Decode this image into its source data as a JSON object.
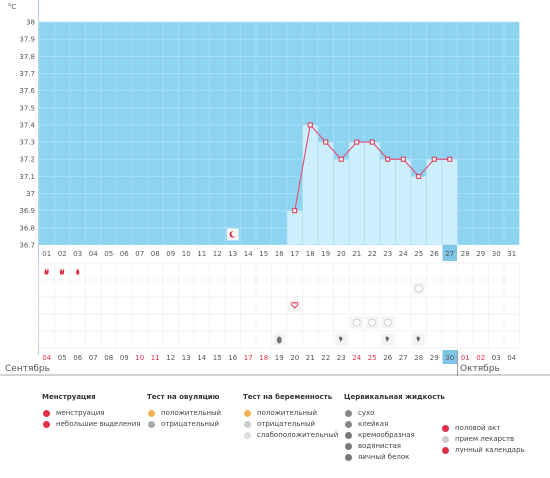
{
  "unit_label": "°C",
  "month_left": "Сентябрь",
  "month_right": "Октябрь",
  "chart_data": {
    "type": "line",
    "ylim": [
      36.7,
      38.0
    ],
    "y_ticks": [
      "38",
      "37.9",
      "37.8",
      "37.7",
      "37.6",
      "37.5",
      "37.4",
      "37.3",
      "37.2",
      "37.1",
      "37",
      "36.9",
      "36.8",
      "36.7"
    ],
    "x_top": [
      "01",
      "02",
      "03",
      "04",
      "05",
      "06",
      "07",
      "08",
      "09",
      "10",
      "11",
      "12",
      "13",
      "14",
      "15",
      "16",
      "17",
      "18",
      "19",
      "20",
      "21",
      "22",
      "23",
      "24",
      "25",
      "26",
      "27",
      "28",
      "29",
      "30",
      "31"
    ],
    "x_top_highlight_index": 26,
    "x_bottom": [
      "04",
      "05",
      "06",
      "07",
      "08",
      "09",
      "10",
      "11",
      "12",
      "13",
      "14",
      "15",
      "16",
      "17",
      "18",
      "19",
      "20",
      "21",
      "22",
      "23",
      "24",
      "25",
      "26",
      "27",
      "28",
      "29",
      "30",
      "01",
      "02",
      "03",
      "04"
    ],
    "x_bottom_red": [
      0,
      6,
      7,
      13,
      14,
      20,
      21,
      27,
      28
    ],
    "x_bottom_highlight_index": 26,
    "temps": [
      null,
      null,
      null,
      null,
      null,
      null,
      null,
      null,
      null,
      null,
      null,
      null,
      null,
      null,
      null,
      null,
      36.9,
      37.4,
      37.3,
      37.2,
      37.3,
      37.3,
      37.2,
      37.2,
      37.1,
      37.2,
      37.2,
      null,
      null,
      null,
      null
    ],
    "markers": [
      {
        "day": 1,
        "row": 0,
        "kind": "menstruation"
      },
      {
        "day": 2,
        "row": 0,
        "kind": "menstruation"
      },
      {
        "day": 3,
        "row": 0,
        "kind": "spotting"
      },
      {
        "day": 13,
        "row": -1,
        "kind": "lunar"
      },
      {
        "day": 17,
        "row": 2,
        "kind": "intercourse"
      },
      {
        "day": 25,
        "row": 1,
        "kind": "pill"
      },
      {
        "day": 21,
        "row": 3,
        "kind": "pill"
      },
      {
        "day": 22,
        "row": 3,
        "kind": "pill"
      },
      {
        "day": 23,
        "row": 3,
        "kind": "pill"
      },
      {
        "day": 16,
        "row": 4,
        "kind": "eggwhite"
      },
      {
        "day": 20,
        "row": 4,
        "kind": "watery"
      },
      {
        "day": 23,
        "row": 4,
        "kind": "watery"
      },
      {
        "day": 25,
        "row": 4,
        "kind": "watery"
      }
    ]
  },
  "legend": [
    {
      "title": "Менструация",
      "items": [
        {
          "label": "менструация",
          "icon": "menstruation-icon",
          "color": "#e0304a"
        },
        {
          "label": "небольшие выделения",
          "icon": "spotting-icon",
          "color": "#e0304a"
        }
      ]
    },
    {
      "title": "Тест на овуляцию",
      "items": [
        {
          "label": "положительный",
          "icon": "ovulation-positive-icon",
          "color": "#f0b35a"
        },
        {
          "label": "отрицательный",
          "icon": "ovulation-negative-icon",
          "color": "#aaaaaa"
        }
      ]
    },
    {
      "title": "Тест на беременность",
      "items": [
        {
          "label": "положительный",
          "icon": "pregnancy-positive-icon",
          "color": "#f0b35a"
        },
        {
          "label": "отрицательный",
          "icon": "pregnancy-negative-icon",
          "color": "#cccccc"
        },
        {
          "label": "слабоположительный",
          "icon": "pregnancy-weak-icon",
          "color": "#dddddd"
        }
      ]
    },
    {
      "title": "Цервикальная жидкость",
      "items": [
        {
          "label": "сухо",
          "icon": "dry-icon",
          "color": "#888888"
        },
        {
          "label": "клейкая",
          "icon": "sticky-icon",
          "color": "#888888"
        },
        {
          "label": "кремообразная",
          "icon": "creamy-icon",
          "color": "#777777"
        },
        {
          "label": "водянистая",
          "icon": "watery-icon",
          "color": "#777777"
        },
        {
          "label": "яичный белок",
          "icon": "eggwhite-icon",
          "color": "#777777"
        }
      ]
    },
    {
      "title": "",
      "items": [
        {
          "label": "половой акт",
          "icon": "intercourse-icon",
          "color": "#e0304a"
        },
        {
          "label": "прием лекарств",
          "icon": "pill-icon",
          "color": "#cccccc"
        },
        {
          "label": "лунный календарь",
          "icon": "lunar-icon",
          "color": "#e0304a"
        }
      ]
    }
  ]
}
